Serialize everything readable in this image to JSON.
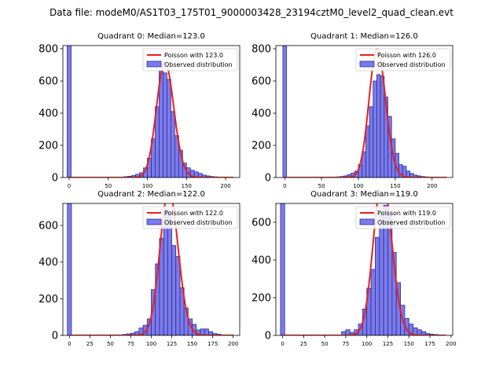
{
  "suptitle": "Data file: modeM0/AS1T03_175T01_9000003428_23194cztM0_level2_quad_clean.evt",
  "colors": {
    "bar_fill": "#7b7bea",
    "bar_edge": "#2b2b9a",
    "curve": "#e8201c"
  },
  "legend": {
    "position": "top-right",
    "observed_label": "Observed distribution"
  },
  "chart_data": [
    {
      "type": "bar",
      "title": "Quadrant 0: Median=123.0",
      "median": 123.0,
      "poisson_label": "Poisson with 123.0",
      "bin_width": 5,
      "xlim": [
        -8,
        218
      ],
      "ylim": [
        0,
        820
      ],
      "xticks": [
        0,
        50,
        100,
        150,
        200
      ],
      "yticks": [
        0,
        200,
        400,
        600,
        800
      ],
      "spike": {
        "x": 0,
        "value": 820
      },
      "histogram": {
        "bin_starts": [
          70,
          75,
          80,
          85,
          90,
          95,
          100,
          105,
          110,
          115,
          120,
          125,
          130,
          135,
          140,
          145,
          150,
          155,
          160,
          165,
          170,
          175,
          180,
          185,
          190
        ],
        "values": [
          5,
          8,
          12,
          20,
          30,
          60,
          120,
          240,
          440,
          660,
          650,
          610,
          410,
          260,
          170,
          90,
          60,
          45,
          35,
          25,
          15,
          10,
          6,
          4,
          2
        ]
      }
    },
    {
      "type": "bar",
      "title": "Quadrant 1: Median=126.0",
      "median": 126.0,
      "poisson_label": "Poisson with 126.0",
      "bin_width": 5,
      "xlim": [
        -12,
        228
      ],
      "ylim": [
        0,
        820
      ],
      "xticks": [
        0,
        50,
        100,
        150,
        200
      ],
      "yticks": [
        0,
        200,
        400,
        600,
        800
      ],
      "spike": {
        "x": 0,
        "value": 820
      },
      "histogram": {
        "bin_starts": [
          70,
          75,
          80,
          85,
          90,
          95,
          100,
          105,
          110,
          115,
          120,
          125,
          130,
          135,
          140,
          145,
          150,
          155,
          160,
          165,
          170,
          175,
          180,
          185,
          190,
          195
        ],
        "values": [
          4,
          6,
          10,
          18,
          28,
          40,
          80,
          160,
          320,
          440,
          600,
          640,
          630,
          500,
          380,
          240,
          150,
          80,
          70,
          40,
          25,
          15,
          10,
          6,
          4,
          2
        ]
      }
    },
    {
      "type": "bar",
      "title": "Quadrant 2: Median=122.0",
      "median": 122.0,
      "poisson_label": "Poisson with 122.0",
      "bin_width": 5,
      "xlim": [
        -8,
        208
      ],
      "ylim": [
        0,
        720
      ],
      "xticks": [
        0,
        25,
        50,
        75,
        100,
        125,
        150,
        175,
        200
      ],
      "yticks": [
        0,
        200,
        400,
        600
      ],
      "spike": {
        "x": 0,
        "value": 720
      },
      "histogram": {
        "bin_starts": [
          65,
          70,
          75,
          80,
          85,
          90,
          95,
          100,
          105,
          110,
          115,
          120,
          125,
          130,
          135,
          140,
          145,
          150,
          155,
          160,
          165,
          170,
          175,
          180,
          185
        ],
        "values": [
          5,
          8,
          12,
          20,
          40,
          55,
          90,
          250,
          390,
          530,
          690,
          680,
          490,
          430,
          260,
          150,
          90,
          60,
          30,
          35,
          35,
          20,
          10,
          6,
          3
        ]
      }
    },
    {
      "type": "bar",
      "title": "Quadrant 3: Median=119.0",
      "median": 119.0,
      "poisson_label": "Poisson with 119.0",
      "bin_width": 5,
      "xlim": [
        -8,
        202
      ],
      "ylim": [
        0,
        700
      ],
      "xticks": [
        0,
        25,
        50,
        75,
        100,
        125,
        150,
        175,
        200
      ],
      "yticks": [
        0,
        200,
        400,
        600
      ],
      "spike": {
        "x": 0,
        "value": 700
      },
      "histogram": {
        "bin_starts": [
          70,
          75,
          80,
          85,
          90,
          95,
          100,
          105,
          110,
          115,
          120,
          125,
          130,
          135,
          140,
          145,
          150,
          155,
          160,
          165,
          170,
          175,
          180,
          185
        ],
        "values": [
          20,
          30,
          15,
          30,
          60,
          140,
          250,
          350,
          520,
          640,
          690,
          650,
          440,
          280,
          160,
          90,
          60,
          40,
          30,
          20,
          10,
          6,
          4,
          2
        ]
      }
    }
  ]
}
